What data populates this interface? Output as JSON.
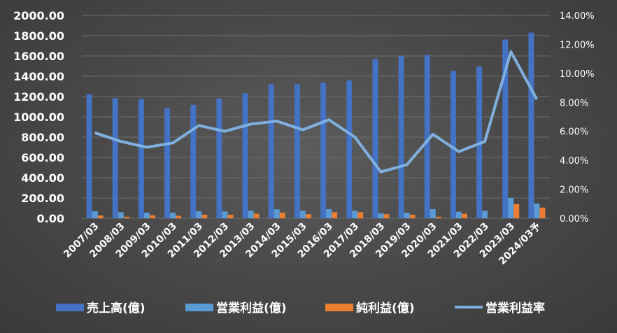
{
  "chart_data": {
    "type": "bar",
    "categories": [
      "2007/03",
      "2008/03",
      "2009/03",
      "2010/03",
      "2011/03",
      "2012/03",
      "2013/03",
      "2014/03",
      "2015/03",
      "2016/03",
      "2017/03",
      "2018/03",
      "2019/03",
      "2020/03",
      "2021/03",
      "2022/03",
      "2023/03",
      "2024/03予"
    ],
    "y_ticks": [
      "0.00",
      "200.00",
      "400.00",
      "600.00",
      "800.00",
      "1000.00",
      "1200.00",
      "1400.00",
      "1600.00",
      "1800.00",
      "2000.00"
    ],
    "y2_ticks": [
      "0.00%",
      "2.00%",
      "4.00%",
      "6.00%",
      "8.00%",
      "10.00%",
      "12.00%",
      "14.00%"
    ],
    "ylim": [
      0,
      2000
    ],
    "y2lim": [
      0,
      14
    ],
    "grid": true,
    "legend_position": "bottom",
    "series": [
      {
        "name": "売上高(億)",
        "type": "bar",
        "axis": "left",
        "color": "#4472c4",
        "values": [
          1222,
          1185,
          1175,
          1085,
          1118,
          1180,
          1232,
          1322,
          1322,
          1335,
          1358,
          1568,
          1598,
          1610,
          1452,
          1495,
          1762,
          1830
        ]
      },
      {
        "name": "営業利益(億)",
        "type": "bar",
        "axis": "left",
        "color": "#5b9bd5",
        "values": [
          70,
          60,
          55,
          55,
          68,
          68,
          75,
          88,
          75,
          90,
          75,
          50,
          55,
          90,
          65,
          75,
          200,
          145
        ]
      },
      {
        "name": "純利益(億)",
        "type": "bar",
        "axis": "left",
        "color": "#ed7d31",
        "values": [
          28,
          15,
          30,
          25,
          35,
          35,
          45,
          55,
          40,
          60,
          60,
          40,
          35,
          15,
          45,
          0,
          140,
          105
        ]
      },
      {
        "name": "営業利益率",
        "type": "line",
        "axis": "right",
        "color": "#7fb0e0",
        "values": [
          5.9,
          5.3,
          4.9,
          5.2,
          6.4,
          6.0,
          6.5,
          6.7,
          6.1,
          6.8,
          5.6,
          3.2,
          3.7,
          5.8,
          4.6,
          5.3,
          11.5,
          8.2
        ]
      }
    ]
  }
}
